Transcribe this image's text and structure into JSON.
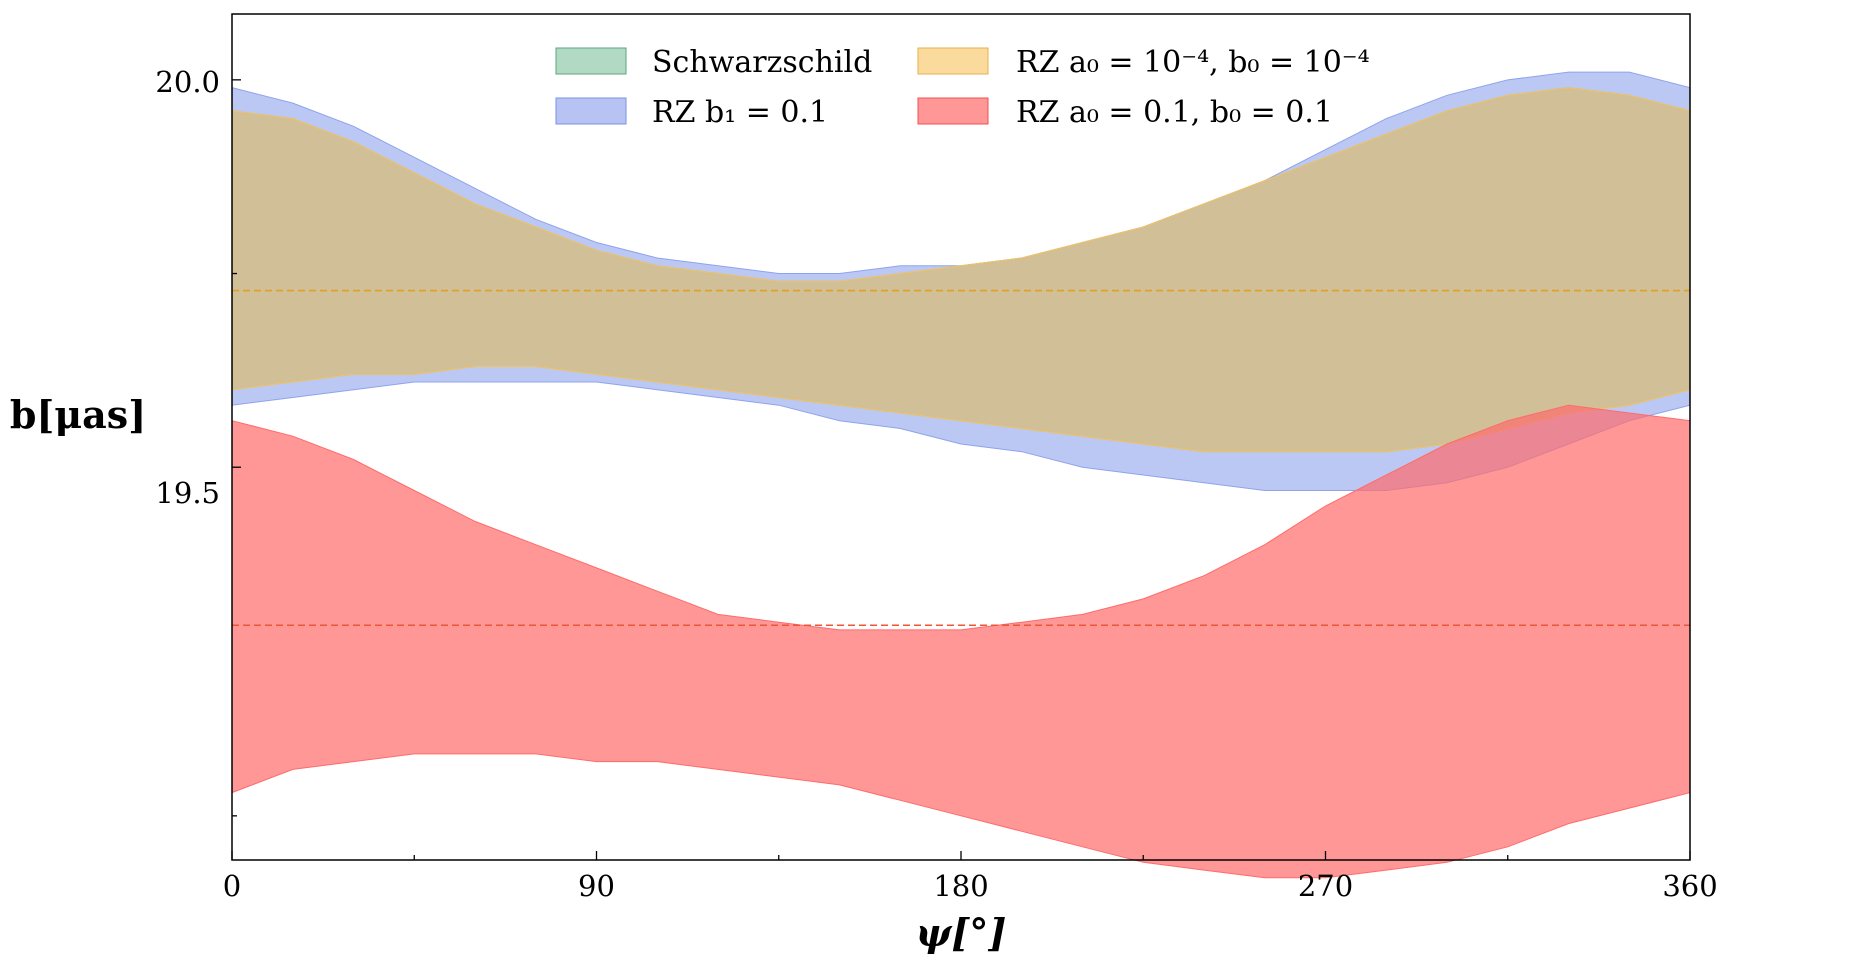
{
  "chart_data": {
    "type": "area",
    "title": "",
    "xlabel": "ψ[°]",
    "ylabel": "b[μas]",
    "xlim": [
      0,
      360
    ],
    "ylim": [
      18.993,
      20.085
    ],
    "xticks": [
      0,
      90,
      180,
      270,
      360
    ],
    "xtick_labels": [
      "0",
      "90",
      "180",
      "270",
      "360"
    ],
    "yticks": [
      19.5,
      20.0
    ],
    "ytick_labels": [
      "19.5",
      "20.0"
    ],
    "x_minor_ticks": [
      45,
      135,
      225,
      315
    ],
    "y_minor_ticks": [
      19.05,
      19.75
    ],
    "grid": false,
    "legend_position": "top-center",
    "x": [
      0,
      15,
      30,
      45,
      60,
      75,
      90,
      105,
      120,
      135,
      150,
      165,
      180,
      195,
      210,
      225,
      240,
      255,
      270,
      285,
      300,
      315,
      330,
      345,
      360
    ],
    "series": [
      {
        "name": "Schwarzschild",
        "legend_label": "Schwarzschild",
        "color": "#7fbf9b",
        "upper": [
          19.96,
          19.95,
          19.92,
          19.88,
          19.84,
          19.81,
          19.78,
          19.76,
          19.75,
          19.74,
          19.74,
          19.75,
          19.76,
          19.77,
          19.79,
          19.81,
          19.84,
          19.87,
          19.9,
          19.93,
          19.96,
          19.98,
          19.99,
          19.98,
          19.96
        ],
        "lower": [
          19.6,
          19.61,
          19.62,
          19.62,
          19.63,
          19.63,
          19.62,
          19.61,
          19.6,
          19.59,
          19.58,
          19.57,
          19.56,
          19.55,
          19.54,
          19.53,
          19.52,
          19.52,
          19.52,
          19.52,
          19.53,
          19.55,
          19.57,
          19.58,
          19.6
        ]
      },
      {
        "name": "RZ b1 = 0.1",
        "legend_label": "RZ b₁ = 0.1",
        "color": "#8fa3ec",
        "upper": [
          19.99,
          19.97,
          19.94,
          19.9,
          19.86,
          19.82,
          19.79,
          19.77,
          19.76,
          19.75,
          19.75,
          19.76,
          19.76,
          19.77,
          19.79,
          19.81,
          19.84,
          19.87,
          19.91,
          19.95,
          19.98,
          20.0,
          20.01,
          20.01,
          19.99
        ],
        "lower": [
          19.58,
          19.59,
          19.6,
          19.61,
          19.61,
          19.61,
          19.61,
          19.6,
          19.59,
          19.58,
          19.56,
          19.55,
          19.53,
          19.52,
          19.5,
          19.49,
          19.48,
          19.47,
          19.47,
          19.47,
          19.48,
          19.5,
          19.53,
          19.56,
          19.58
        ]
      },
      {
        "name": "RZ a0 = 10^-4, b0 = 10^-4",
        "legend_label": "RZ a₀ = 10⁻⁴, b₀ = 10⁻⁴",
        "color": "#f7c35c",
        "upper": [
          19.96,
          19.95,
          19.92,
          19.88,
          19.84,
          19.81,
          19.78,
          19.76,
          19.75,
          19.74,
          19.74,
          19.75,
          19.76,
          19.77,
          19.79,
          19.81,
          19.84,
          19.87,
          19.9,
          19.93,
          19.96,
          19.98,
          19.99,
          19.98,
          19.96
        ],
        "lower": [
          19.6,
          19.61,
          19.62,
          19.62,
          19.63,
          19.63,
          19.62,
          19.61,
          19.6,
          19.59,
          19.58,
          19.57,
          19.56,
          19.55,
          19.54,
          19.53,
          19.52,
          19.52,
          19.52,
          19.52,
          19.53,
          19.55,
          19.57,
          19.58,
          19.6
        ]
      },
      {
        "name": "RZ a0 = 0.1, b0 = 0.1",
        "legend_label": "RZ a₀ = 0.1, b₀ = 0.1",
        "color": "#ff6b6b",
        "upper": [
          19.56,
          19.54,
          19.51,
          19.47,
          19.43,
          19.4,
          19.37,
          19.34,
          19.31,
          19.3,
          19.29,
          19.29,
          19.29,
          19.3,
          19.31,
          19.33,
          19.36,
          19.4,
          19.45,
          19.49,
          19.53,
          19.56,
          19.58,
          19.57,
          19.56
        ],
        "lower": [
          19.08,
          19.11,
          19.12,
          19.13,
          19.13,
          19.13,
          19.12,
          19.12,
          19.11,
          19.1,
          19.09,
          19.07,
          19.05,
          19.03,
          19.01,
          18.99,
          18.98,
          18.97,
          18.97,
          18.98,
          18.99,
          19.01,
          19.04,
          19.06,
          19.08
        ]
      }
    ],
    "mean_lines": [
      {
        "name": "RZ a0 = 10^-4, b0 = 10^-4 mean",
        "value": 19.728,
        "color": "#e0a020"
      },
      {
        "name": "RZ a0 = 0.1, b0 = 0.1 mean",
        "value": 19.296,
        "color": "#ee5533"
      }
    ]
  }
}
